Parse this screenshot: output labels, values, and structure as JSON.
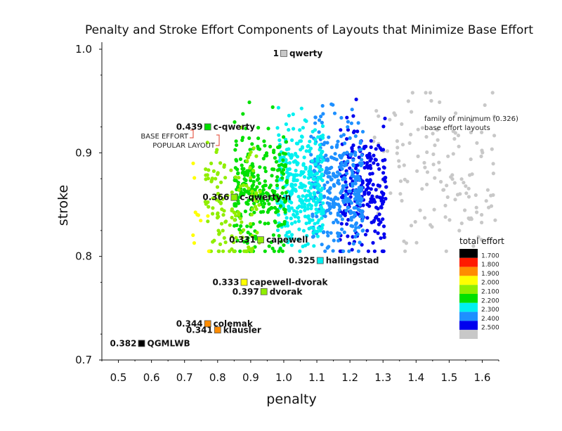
{
  "chart_data": {
    "type": "scatter",
    "title": "Penalty and Stroke Effort Components of Layouts that Minimize Base Effort",
    "xlabel": "penalty",
    "ylabel": "stroke",
    "xlim": [
      0.45,
      1.65
    ],
    "ylim": [
      0.7,
      1.0
    ],
    "xticks": [
      "0.5",
      "0.6",
      "0.7",
      "0.8",
      "0.9",
      "1.0",
      "1.1",
      "1.2",
      "1.3",
      "1.4",
      "1.5",
      "1.6"
    ],
    "yticks": [
      "0.7",
      "0.8",
      "0.9",
      "1.0"
    ],
    "grid": false,
    "legend": {
      "title": "total effort",
      "placement": "right",
      "entries": [
        {
          "label": "1.700",
          "color": "#000000"
        },
        {
          "label": "1.800",
          "color": "#ff1a00"
        },
        {
          "label": "1.900",
          "color": "#ff8c00"
        },
        {
          "label": "2.000",
          "color": "#ffff00"
        },
        {
          "label": "2.100",
          "color": "#90ee00"
        },
        {
          "label": "2.200",
          "color": "#00e000"
        },
        {
          "label": "2.300",
          "color": "#00f0f0"
        },
        {
          "label": "2.400",
          "color": "#1e90ff"
        },
        {
          "label": "2.500",
          "color": "#0000ee"
        },
        {
          "label": "",
          "color": "#c8c8c8"
        }
      ]
    },
    "cloud_bands": [
      {
        "color": "#c8c8c8",
        "x_range": [
          1.27,
          1.64
        ],
        "y_center": 0.878,
        "y_spread": 0.045,
        "count": 140
      },
      {
        "color": "#0000ee",
        "x_range": [
          1.17,
          1.31
        ],
        "y_center": 0.868,
        "y_spread": 0.035,
        "count": 230
      },
      {
        "color": "#1e90ff",
        "x_range": [
          1.08,
          1.24
        ],
        "y_center": 0.868,
        "y_spread": 0.035,
        "count": 320
      },
      {
        "color": "#00f0f0",
        "x_range": [
          0.98,
          1.12
        ],
        "y_center": 0.87,
        "y_spread": 0.033,
        "count": 330
      },
      {
        "color": "#00e000",
        "x_range": [
          0.85,
          1.01
        ],
        "y_center": 0.862,
        "y_spread": 0.033,
        "count": 280
      },
      {
        "color": "#90ee00",
        "x_range": [
          0.76,
          0.93
        ],
        "y_center": 0.855,
        "y_spread": 0.032,
        "count": 130
      },
      {
        "color": "#ffff00",
        "x_range": [
          0.71,
          0.82
        ],
        "y_center": 0.838,
        "y_spread": 0.03,
        "count": 10
      }
    ],
    "layouts": [
      {
        "name": "qwerty",
        "value": "1",
        "x": 1.0,
        "y": 0.996,
        "color": "#c8c8c8"
      },
      {
        "name": "c-qwerty",
        "value": "0.439",
        "x": 0.77,
        "y": 0.925,
        "color": "#00e000"
      },
      {
        "name": "c-qwerty-n",
        "value": "0.366",
        "x": 0.85,
        "y": 0.857,
        "color": "#90ee00"
      },
      {
        "name": "capewell",
        "value": "0.331",
        "x": 0.93,
        "y": 0.816,
        "color": "#90ee00"
      },
      {
        "name": "hallingstad",
        "value": "0.325",
        "x": 1.11,
        "y": 0.796,
        "color": "#00f0f0"
      },
      {
        "name": "capewell-dvorak",
        "value": "0.333",
        "x": 0.88,
        "y": 0.775,
        "color": "#ffff00"
      },
      {
        "name": "dvorak",
        "value": "0.397",
        "x": 0.94,
        "y": 0.766,
        "color": "#90ee00"
      },
      {
        "name": "colemak",
        "value": "0.344",
        "x": 0.77,
        "y": 0.735,
        "color": "#ff8c00"
      },
      {
        "name": "klausler",
        "value": "0.341",
        "x": 0.8,
        "y": 0.729,
        "color": "#ff8c00"
      },
      {
        "name": "QGMLWB",
        "value": "0.382",
        "x": 0.57,
        "y": 0.716,
        "color": "#000000"
      }
    ],
    "annotations": {
      "family_line1": "family of minimum (0.326)",
      "family_line2": "base effort layouts",
      "base_effort": "BASE EFFORT",
      "popular_layout": "POPULAR LAYOUT"
    }
  }
}
